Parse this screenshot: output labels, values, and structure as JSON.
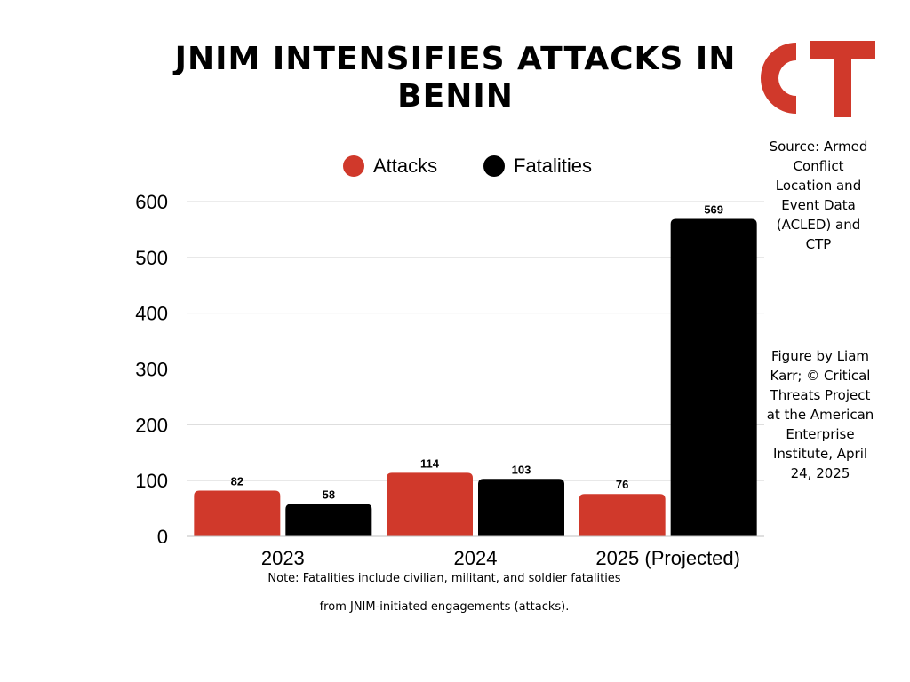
{
  "title": "JNIM INTENSIFIES ATTACKS IN BENIN",
  "logo_text": "CT",
  "source_note": "Source: Armed Conflict Location and Event Data (ACLED) and CTP",
  "credit_note": "Figure by Liam Karr; © Critical Threats Project at the American Enterprise Institute, April 24, 2025",
  "footnote_line1": "Note: Fatalities include civilian, militant, and soldier fatalities",
  "footnote_line2": "from JNIM-initiated engagements (attacks).",
  "colors": {
    "attacks": "#d0392b",
    "fatalities": "#000000",
    "gridline": "#d9d9d9",
    "logo": "#d0392b"
  },
  "chart_data": {
    "type": "bar",
    "title": "JNIM INTENSIFIES ATTACKS IN BENIN",
    "categories": [
      "2023",
      "2024",
      "2025 (Projected)"
    ],
    "series": [
      {
        "name": "Attacks",
        "values": [
          82,
          114,
          76
        ],
        "color": "#d0392b"
      },
      {
        "name": "Fatalities",
        "values": [
          58,
          103,
          569
        ],
        "color": "#000000"
      }
    ],
    "data_labels": true,
    "ylim": [
      0,
      600
    ],
    "yticks": [
      0,
      100,
      200,
      300,
      400,
      500,
      600
    ],
    "grid": true,
    "legend": "top-center",
    "xlabel": "",
    "ylabel": ""
  }
}
